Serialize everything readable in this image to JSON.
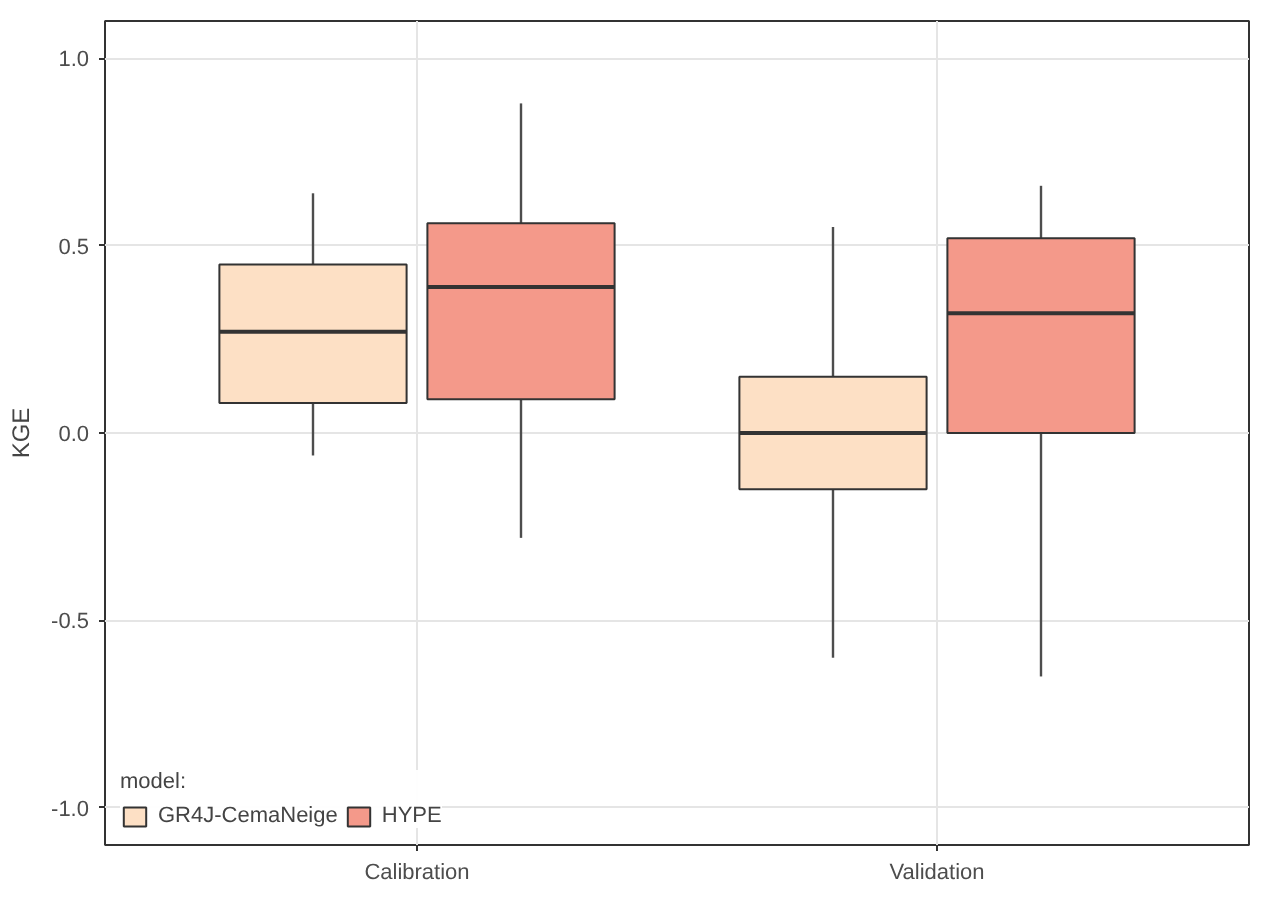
{
  "chart_data": {
    "type": "box",
    "categories": [
      "Calibration",
      "Validation"
    ],
    "ylabel": "KGE",
    "legend_title": "model:",
    "legend": "bottom left",
    "grid": true,
    "ylim": [
      -1.1,
      1.1
    ],
    "yticks": [
      {
        "value": -1,
        "label": "-1.0"
      },
      {
        "value": -0.5,
        "label": "-0.5"
      },
      {
        "value": 0,
        "label": "0.0"
      },
      {
        "value": 0.5,
        "label": "0.5"
      },
      {
        "value": 1,
        "label": "1.0"
      }
    ],
    "series": [
      {
        "name": "GR4J-CemaNeige",
        "color": "#fde0c5",
        "boxes": [
          {
            "low": -0.06,
            "q1": 0.08,
            "median": 0.27,
            "q3": 0.45,
            "high": 0.64
          },
          {
            "low": -0.6,
            "q1": -0.15,
            "median": 0.0,
            "q3": 0.15,
            "high": 0.55
          }
        ]
      },
      {
        "name": "HYPE",
        "color": "#f4998a",
        "boxes": [
          {
            "low": -0.28,
            "q1": 0.09,
            "median": 0.39,
            "q3": 0.56,
            "high": 0.88
          },
          {
            "low": -0.65,
            "q1": 0.0,
            "median": 0.32,
            "q3": 0.52,
            "high": 0.66
          }
        ]
      }
    ]
  }
}
